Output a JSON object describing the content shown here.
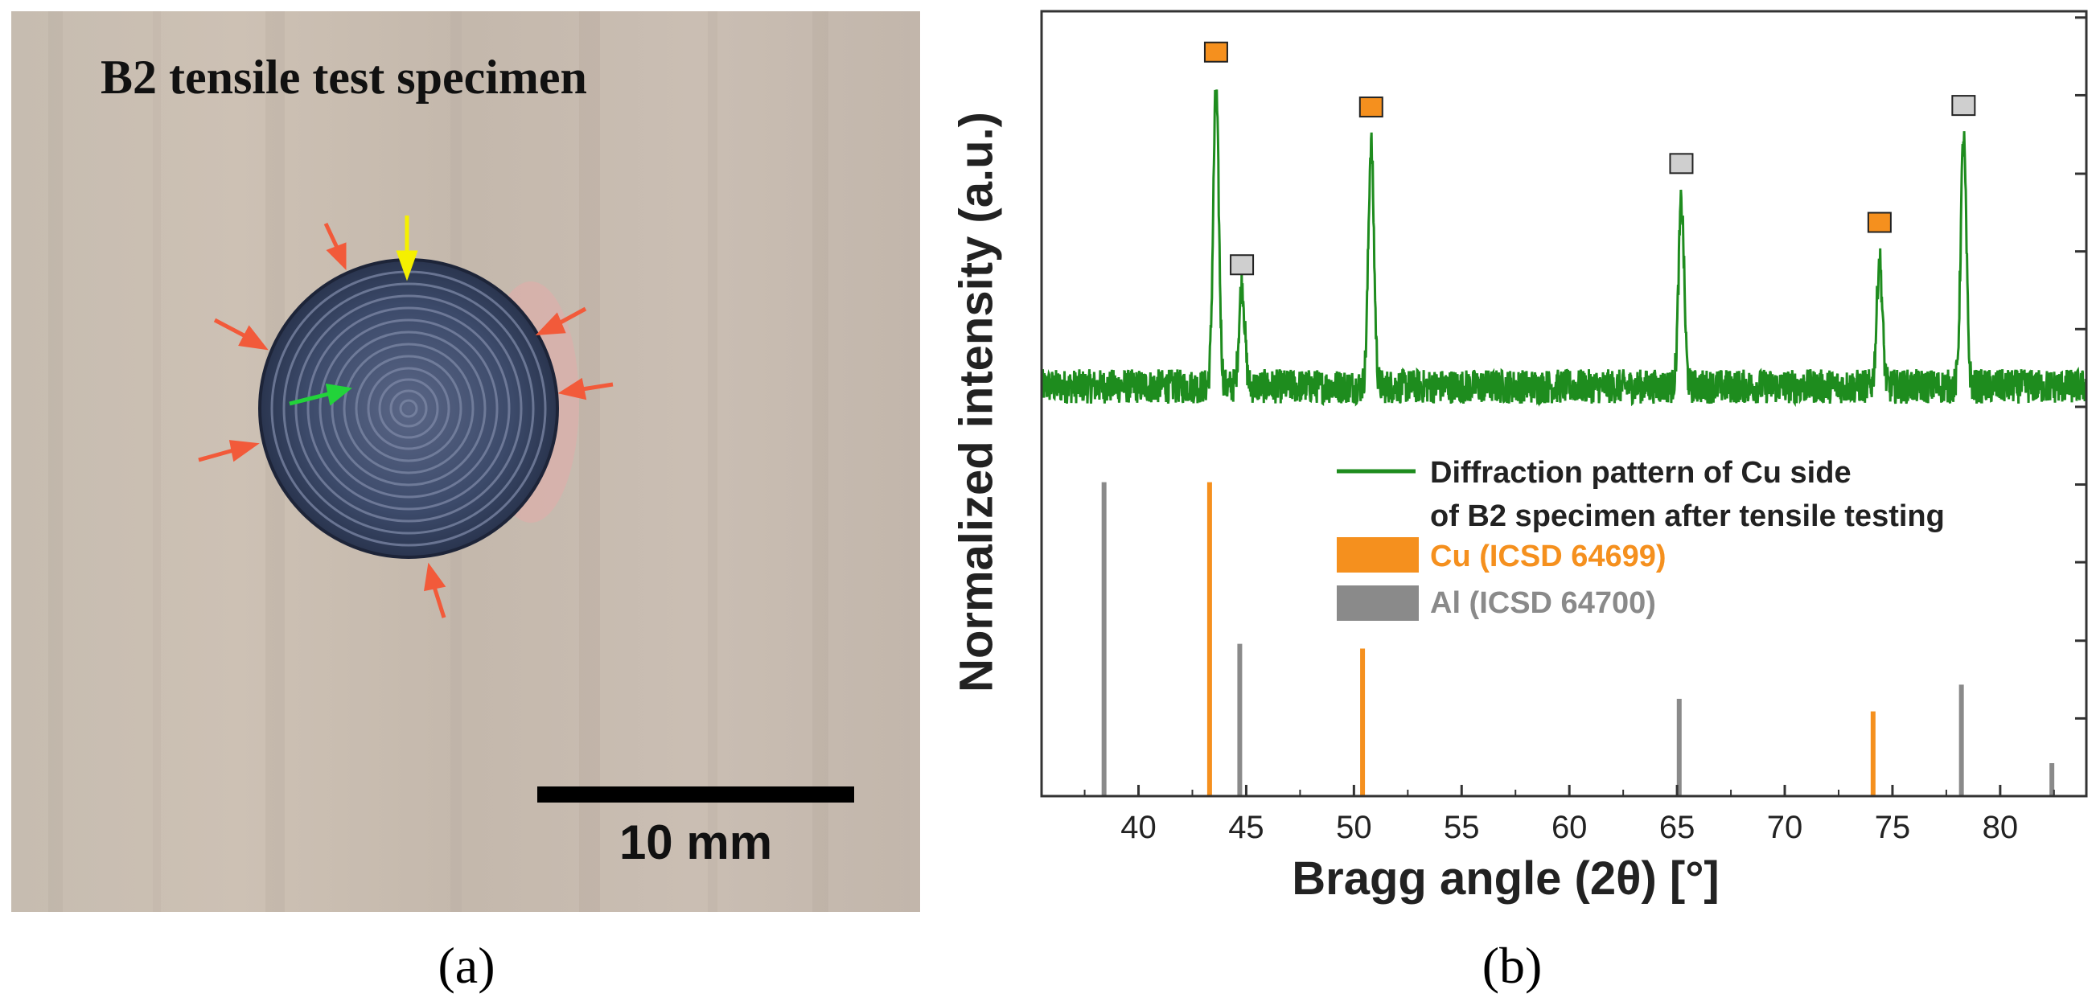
{
  "panel_a": {
    "title": "B2 tensile test specimen",
    "scale_bar_label": "10 mm",
    "caption": "(a)",
    "colors": {
      "background": "#c9bdb1",
      "specimen": "#3a4867",
      "arrow_red": "#f25a3a",
      "arrow_yellow": "#f5f000",
      "arrow_green": "#22d33a",
      "scale_bar": "#000000"
    }
  },
  "panel_b": {
    "caption": "(b)"
  },
  "chart_data": {
    "type": "line",
    "xlabel": "Bragg angle (2θ) [°]",
    "ylabel": "Normalized intensity (a.u.)",
    "xlim": [
      35.5,
      84
    ],
    "ylim": [
      0,
      1
    ],
    "x_ticks": [
      40,
      45,
      50,
      55,
      60,
      65,
      70,
      75,
      80
    ],
    "x_tick_labels": [
      "40",
      "45",
      "50",
      "55",
      "60",
      "65",
      "70",
      "75",
      "80"
    ],
    "y_ticks_unlabeled": [
      0.099,
      0.198,
      0.298,
      0.397,
      0.496,
      0.595,
      0.694,
      0.793,
      0.893,
      0.992
    ],
    "grid": false,
    "measured_pattern": {
      "name": "Diffraction pattern of Cu side of B2 specimen after tensile testing",
      "color": "#1e8c1e",
      "baseline": 0.522,
      "noise_amplitude": 0.022,
      "peaks": [
        {
          "x": 43.6,
          "height": 0.898,
          "phase": "Cu"
        },
        {
          "x": 44.8,
          "height": 0.652,
          "phase": "Al"
        },
        {
          "x": 50.8,
          "height": 0.83,
          "phase": "Cu"
        },
        {
          "x": 65.2,
          "height": 0.756,
          "phase": "Al"
        },
        {
          "x": 74.4,
          "height": 0.683,
          "phase": "Cu"
        },
        {
          "x": 78.3,
          "height": 0.838,
          "phase": "Al"
        }
      ]
    },
    "peak_markers": [
      {
        "x": 43.6,
        "y": 0.948,
        "phase": "Cu"
      },
      {
        "x": 44.8,
        "y": 0.677,
        "phase": "Al"
      },
      {
        "x": 50.8,
        "y": 0.878,
        "phase": "Cu"
      },
      {
        "x": 65.2,
        "y": 0.806,
        "phase": "Al"
      },
      {
        "x": 74.4,
        "y": 0.731,
        "phase": "Cu"
      },
      {
        "x": 78.3,
        "y": 0.88,
        "phase": "Al"
      }
    ],
    "reference_lines": {
      "Cu": {
        "label": "Cu (ICSD 64699)",
        "color": "#f5901e",
        "x": [
          43.3,
          50.4,
          74.1
        ],
        "height": [
          0.4,
          0.188,
          0.108
        ]
      },
      "Al": {
        "label": "Al (ICSD 64700)",
        "color": "#8a8a8a",
        "x": [
          38.4,
          44.7,
          65.1,
          78.2,
          82.4
        ],
        "height": [
          0.4,
          0.194,
          0.124,
          0.142,
          0.042
        ]
      }
    },
    "legend": [
      {
        "label_line1": "Diffraction pattern of Cu side",
        "label_line2": "of B2 specimen after tensile testing",
        "color": "#1e8c1e",
        "kind": "line"
      },
      {
        "label": "Cu (ICSD 64699)",
        "color": "#f5901e",
        "kind": "patch"
      },
      {
        "label": "Al (ICSD 64700)",
        "color": "#8a8a8a",
        "kind": "patch"
      }
    ],
    "legend_position": "center-right"
  }
}
